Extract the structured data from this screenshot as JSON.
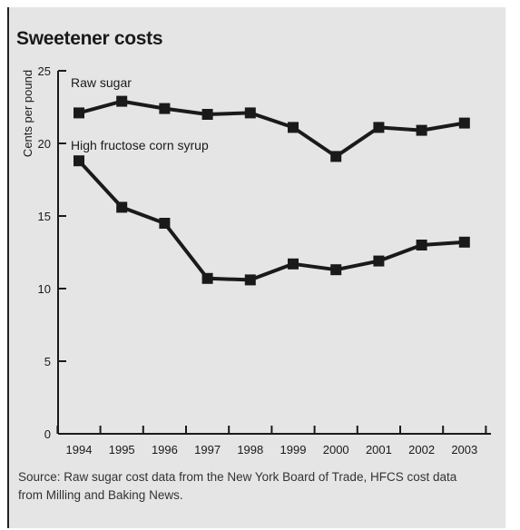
{
  "chart_data": {
    "type": "line",
    "title": "Sweetener costs",
    "xlabel": "",
    "ylabel": "Cents per pound",
    "categories": [
      "1994",
      "1995",
      "1996",
      "1997",
      "1998",
      "1999",
      "2000",
      "2001",
      "2002",
      "2003"
    ],
    "ylim": [
      0,
      25
    ],
    "yticks": [
      "0",
      "5",
      "10",
      "15",
      "20",
      "25"
    ],
    "grid": false,
    "series": [
      {
        "name": "Raw sugar",
        "values": [
          22.1,
          22.9,
          22.4,
          22.0,
          22.1,
          21.1,
          19.1,
          21.1,
          20.9,
          21.4
        ]
      },
      {
        "name": "High fructose corn syrup",
        "values": [
          18.8,
          15.6,
          14.5,
          10.7,
          10.6,
          11.7,
          11.3,
          11.9,
          13.0,
          13.2
        ]
      }
    ],
    "line_color": "#1a1a1a"
  },
  "source_note": "Source: Raw sugar cost data from the New York Board of Trade, HFCS cost data from Milling and Baking News."
}
